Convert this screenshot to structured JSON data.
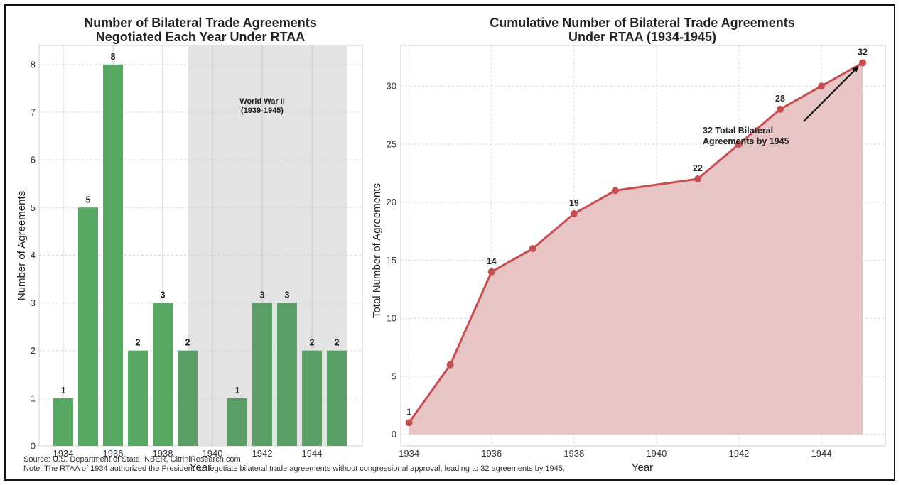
{
  "colors": {
    "bar": "#57a862",
    "bar_war": "#5a9e66",
    "line": "#c44e52",
    "area": "#e8c4c5",
    "war_band": "#e3e3e3",
    "grid": "#d4d4d4"
  },
  "footnotes": {
    "source": "Source: U.S. Department of State, NBER, CitriniResearch.com",
    "note": "Note: The RTAA of 1934 authorized the President to negotiate bilateral trade agreements without congressional approval, leading to 32 agreements by 1945."
  },
  "chart_data": [
    {
      "type": "bar",
      "title_line1": "Number of Bilateral Trade Agreements",
      "title_line2": "Negotiated Each Year Under RTAA",
      "xlabel": "Year",
      "ylabel": "Number of Agreements",
      "x": [
        1934,
        1935,
        1936,
        1937,
        1938,
        1939,
        1940,
        1941,
        1942,
        1943,
        1944,
        1945
      ],
      "values": [
        1,
        5,
        8,
        2,
        3,
        2,
        0,
        1,
        3,
        3,
        2,
        2
      ],
      "data_labels": [
        "1",
        "5",
        "8",
        "2",
        "3",
        "2",
        "",
        "1",
        "3",
        "3",
        "2",
        "2"
      ],
      "xticks": [
        "1934",
        "1936",
        "1938",
        "1940",
        "1942",
        "1944"
      ],
      "yticks": [
        "0",
        "1",
        "2",
        "3",
        "4",
        "5",
        "6",
        "7",
        "8"
      ],
      "ylim": [
        0,
        8.4
      ],
      "grid": true,
      "shaded_region": {
        "from": 1939,
        "to": 1945,
        "label_line1": "World War II",
        "label_line2": "(1939-1945)"
      }
    },
    {
      "type": "area",
      "title_line1": "Cumulative Number of Bilateral Trade Agreements",
      "title_line2": "Under RTAA (1934-1945)",
      "xlabel": "Year",
      "ylabel": "Total Number of Agreements",
      "x": [
        1934,
        1935,
        1936,
        1937,
        1938,
        1939,
        1941,
        1942,
        1943,
        1944,
        1945
      ],
      "values": [
        1,
        6,
        14,
        16,
        19,
        21,
        22,
        25,
        28,
        30,
        32
      ],
      "point_labels": [
        {
          "x": 1934,
          "y": 1,
          "text": "1"
        },
        {
          "x": 1936,
          "y": 14,
          "text": "14"
        },
        {
          "x": 1938,
          "y": 19,
          "text": "19"
        },
        {
          "x": 1941,
          "y": 22,
          "text": "22"
        },
        {
          "x": 1943,
          "y": 28,
          "text": "28"
        },
        {
          "x": 1945,
          "y": 32,
          "text": "32"
        }
      ],
      "xticks": [
        "1934",
        "1936",
        "1938",
        "1940",
        "1942",
        "1944"
      ],
      "yticks": [
        "0",
        "5",
        "10",
        "15",
        "20",
        "25",
        "30"
      ],
      "xlim": [
        1933.8,
        1945.55
      ],
      "ylim": [
        -1,
        33.5
      ],
      "grid": true,
      "annotation": {
        "line1": "32 Total Bilateral",
        "line2": "Agreements by 1945",
        "points_to": [
          1945,
          32
        ]
      }
    }
  ]
}
